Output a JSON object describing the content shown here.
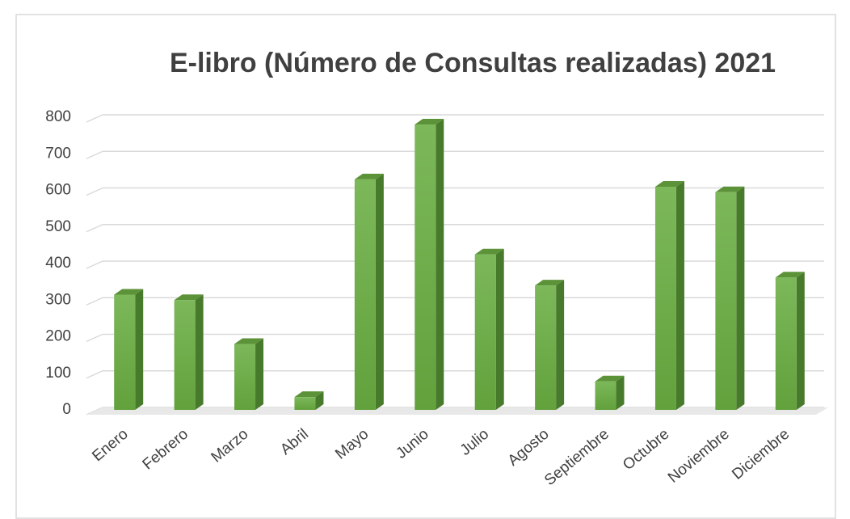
{
  "chart_data": {
    "type": "bar3d",
    "title": "E-libro (Número de Consultas realizadas) 2021",
    "categories": [
      "Enero",
      "Febrero",
      "Marzo",
      "Abril",
      "Mayo",
      "Junio",
      "Julio",
      "Agosto",
      "Septiembre",
      "Octubre",
      "Noviembre",
      "Diciembre"
    ],
    "values": [
      315,
      300,
      180,
      35,
      630,
      780,
      425,
      340,
      78,
      610,
      595,
      362
    ],
    "color": "#70ad47",
    "ylim": [
      0,
      800
    ],
    "yticks": [
      0,
      100,
      200,
      300,
      400,
      500,
      600,
      700,
      800
    ],
    "grid": true
  }
}
